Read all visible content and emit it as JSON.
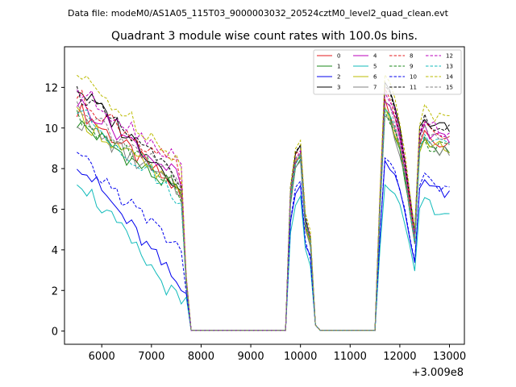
{
  "chart_data": {
    "type": "line",
    "suptitle": "Data file: modeM0/AS1A05_115T03_9000003032_20524cztM0_level2_quad_clean.evt",
    "title": "Quadrant 3 module wise count rates with 100.0s bins.",
    "xlabel": "",
    "ylabel": "",
    "x_offset_label": "+3.009e8",
    "xlim": [
      5250,
      13300
    ],
    "ylim": [
      -0.65,
      14.0
    ],
    "xticks": [
      6000,
      7000,
      8000,
      9000,
      10000,
      11000,
      12000,
      13000
    ],
    "yticks": [
      0,
      2,
      4,
      6,
      8,
      10,
      12
    ],
    "legend_position": "top-right",
    "segments": [
      [
        5500,
        5600,
        5700,
        5800,
        5900,
        6000,
        6100,
        6200,
        6300,
        6400,
        6500,
        6600,
        6700,
        6800,
        6900,
        7000,
        7100,
        7200,
        7300,
        7400,
        7500,
        7600,
        7700,
        7800,
        7900,
        8000,
        8100,
        8200,
        8300,
        8400,
        8500,
        8600,
        8700,
        8800,
        8900,
        9000,
        9100,
        9200,
        9300,
        9400,
        9500,
        9600,
        9700,
        9800,
        9900,
        10000,
        10100,
        10200,
        10300,
        10400,
        10500,
        10600,
        10700,
        10800,
        10900,
        11000,
        11100,
        11200,
        11300,
        11400,
        11500,
        11600,
        11700,
        11800,
        11900,
        12000,
        12100,
        12200,
        12300,
        12400,
        12500,
        12600,
        12700,
        12800,
        12900,
        13000
      ]
    ],
    "series": [
      {
        "name": "0",
        "color": "#e31a1c",
        "dash": "solid",
        "level": 11.0,
        "decay": 0.2,
        "peak2": 8.4,
        "peak3": 11.3
      },
      {
        "name": "1",
        "color": "#1a8a1a",
        "dash": "solid",
        "level": 10.3,
        "decay": 0.17,
        "peak2": 8.2,
        "peak3": 10.8
      },
      {
        "name": "2",
        "color": "#0000ee",
        "dash": "solid",
        "level": 8.4,
        "decay": 0.3,
        "peak2": 6.9,
        "peak3": 8.4
      },
      {
        "name": "3",
        "color": "#000000",
        "dash": "solid",
        "level": 12.0,
        "decay": 0.23,
        "peak2": 9.0,
        "peak3": 12.1
      },
      {
        "name": "4",
        "color": "#bb00bb",
        "dash": "solid",
        "level": 11.3,
        "decay": 0.18,
        "peak2": 8.5,
        "peak3": 11.5
      },
      {
        "name": "5",
        "color": "#11bbbb",
        "dash": "solid",
        "level": 7.6,
        "decay": 0.3,
        "peak2": 6.4,
        "peak3": 7.4
      },
      {
        "name": "6",
        "color": "#bbbb00",
        "dash": "solid",
        "level": 10.6,
        "decay": 0.18,
        "peak2": 8.4,
        "peak3": 10.9
      },
      {
        "name": "7",
        "color": "#808080",
        "dash": "solid",
        "level": 10.4,
        "decay": 0.17,
        "peak2": 8.3,
        "peak3": 10.7
      },
      {
        "name": "8",
        "color": "#e31a1c",
        "dash": "dashed",
        "level": 11.6,
        "decay": 0.18,
        "peak2": 8.8,
        "peak3": 11.8
      },
      {
        "name": "9",
        "color": "#1a8a1a",
        "dash": "dashed",
        "level": 10.5,
        "decay": 0.16,
        "peak2": 8.3,
        "peak3": 10.9
      },
      {
        "name": "10",
        "color": "#0000ee",
        "dash": "dashed",
        "level": 8.6,
        "decay": 0.22,
        "peak2": 7.1,
        "peak3": 8.6
      },
      {
        "name": "11",
        "color": "#000000",
        "dash": "dashed",
        "level": 11.8,
        "decay": 0.21,
        "peak2": 8.9,
        "peak3": 12.0
      },
      {
        "name": "12",
        "color": "#bb00bb",
        "dash": "dashed",
        "level": 11.9,
        "decay": 0.17,
        "peak2": 8.7,
        "peak3": 11.9
      },
      {
        "name": "13",
        "color": "#11bbbb",
        "dash": "dashed",
        "level": 10.9,
        "decay": 0.21,
        "peak2": 8.5,
        "peak3": 11.0
      },
      {
        "name": "14",
        "color": "#bbbb00",
        "dash": "dashed",
        "level": 12.6,
        "decay": 0.2,
        "peak2": 9.3,
        "peak3": 12.6
      },
      {
        "name": "15",
        "color": "#808080",
        "dash": "dashed",
        "level": 11.2,
        "decay": 0.19,
        "peak2": 8.6,
        "peak3": 11.4
      }
    ]
  }
}
